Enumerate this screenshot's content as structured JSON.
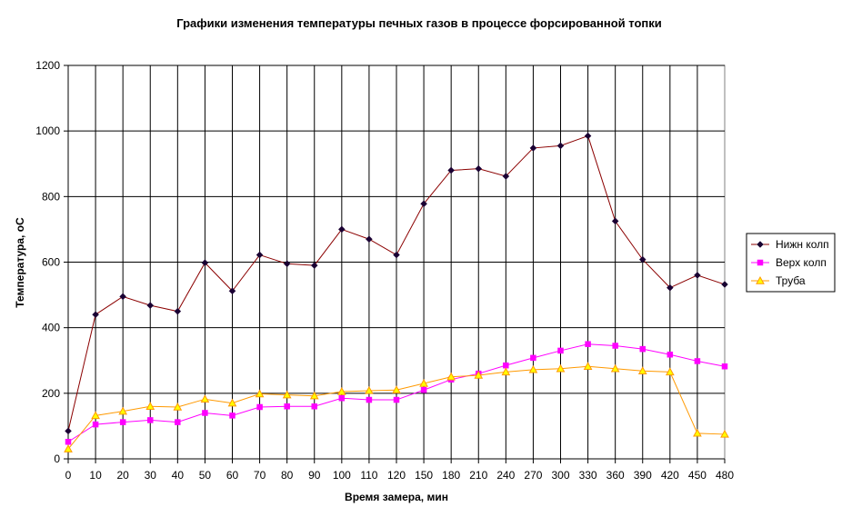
{
  "chart_data": {
    "type": "line",
    "title": "Графики изменения температуры печных газов в процессе форсированной топки",
    "xlabel": "Время замера, мин",
    "ylabel": "Температура, оС",
    "ylim": [
      0,
      1200
    ],
    "yticks": [
      0,
      200,
      400,
      600,
      800,
      1000,
      1200
    ],
    "grid": true,
    "legend_position": "right",
    "categories": [
      "0",
      "10",
      "20",
      "30",
      "40",
      "50",
      "60",
      "70",
      "80",
      "90",
      "100",
      "110",
      "120",
      "150",
      "180",
      "210",
      "240",
      "270",
      "300",
      "330",
      "360",
      "390",
      "420",
      "450",
      "480"
    ],
    "series": [
      {
        "name": "Нижн колп",
        "color": "#8b0000",
        "marker": "diamond",
        "values": [
          85,
          440,
          495,
          468,
          450,
          598,
          512,
          622,
          595,
          590,
          700,
          670,
          622,
          778,
          880,
          885,
          862,
          948,
          955,
          985,
          725,
          608,
          522,
          560,
          532
        ]
      },
      {
        "name": "Верх колп",
        "color": "#ff00ff",
        "marker": "square",
        "values": [
          52,
          105,
          112,
          118,
          112,
          140,
          132,
          158,
          160,
          160,
          185,
          180,
          180,
          210,
          242,
          260,
          285,
          308,
          330,
          350,
          345,
          335,
          318,
          298,
          282
        ]
      },
      {
        "name": "Труба",
        "color": "#ff9900",
        "marker": "triangle",
        "values": [
          30,
          132,
          145,
          160,
          158,
          182,
          170,
          198,
          195,
          192,
          205,
          208,
          210,
          230,
          250,
          255,
          265,
          272,
          275,
          282,
          275,
          268,
          265,
          78,
          75
        ]
      }
    ]
  }
}
